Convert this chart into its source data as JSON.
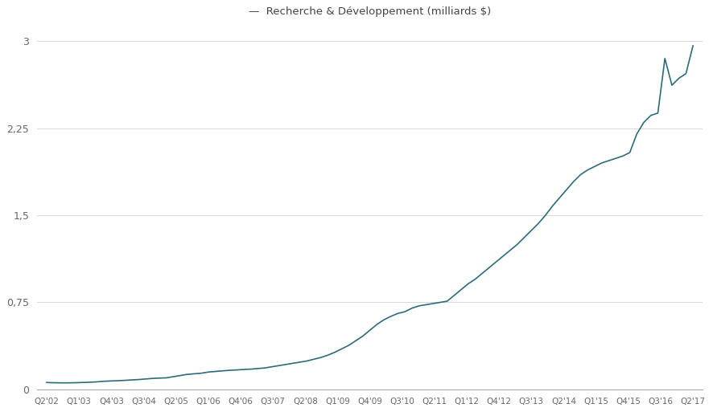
{
  "title": "Recherche & Développement (milliards $)",
  "line_color": "#2e6b7a",
  "background_color": "#ffffff",
  "grid_color": "#d0d0d0",
  "title_color": "#444444",
  "tick_color": "#666666",
  "ylim": [
    0,
    3.15
  ],
  "yticks": [
    0,
    0.75,
    1.5,
    2.25,
    3
  ],
  "ytick_labels": [
    "0",
    "0,75",
    "1,5",
    "2,25",
    "3"
  ],
  "xtick_labels": [
    "Q2'02",
    "Q1'03",
    "Q4'03",
    "Q3'04",
    "Q2'05",
    "Q1'06",
    "Q4'06",
    "Q3'07",
    "Q2'08",
    "Q1'09",
    "Q4'09",
    "Q3'10",
    "Q2'11",
    "Q1'12",
    "Q4'12",
    "Q3'13",
    "Q2'14",
    "Q1'15",
    "Q4'15",
    "Q3'16",
    "Q2'17"
  ],
  "values": [
    0.06,
    0.058,
    0.057,
    0.057,
    0.058,
    0.06,
    0.062,
    0.065,
    0.07,
    0.073,
    0.075,
    0.078,
    0.082,
    0.085,
    0.09,
    0.095,
    0.098,
    0.1,
    0.11,
    0.12,
    0.13,
    0.135,
    0.14,
    0.15,
    0.155,
    0.16,
    0.165,
    0.168,
    0.172,
    0.175,
    0.18,
    0.185,
    0.195,
    0.205,
    0.215,
    0.225,
    0.235,
    0.245,
    0.26,
    0.275,
    0.295,
    0.32,
    0.35,
    0.38,
    0.42,
    0.46,
    0.51,
    0.56,
    0.6,
    0.63,
    0.655,
    0.67,
    0.7,
    0.72,
    0.73,
    0.74,
    0.75,
    0.76,
    0.81,
    0.86,
    0.91,
    0.95,
    1.0,
    1.05,
    1.1,
    1.15,
    1.2,
    1.25,
    1.31,
    1.37,
    1.43,
    1.5,
    1.58,
    1.65,
    1.72,
    1.79,
    1.85,
    1.89,
    1.92,
    1.95,
    1.97,
    1.99,
    2.01,
    2.04,
    2.2,
    2.3,
    2.36,
    2.38,
    2.85,
    2.62,
    2.68,
    2.72,
    2.96
  ]
}
